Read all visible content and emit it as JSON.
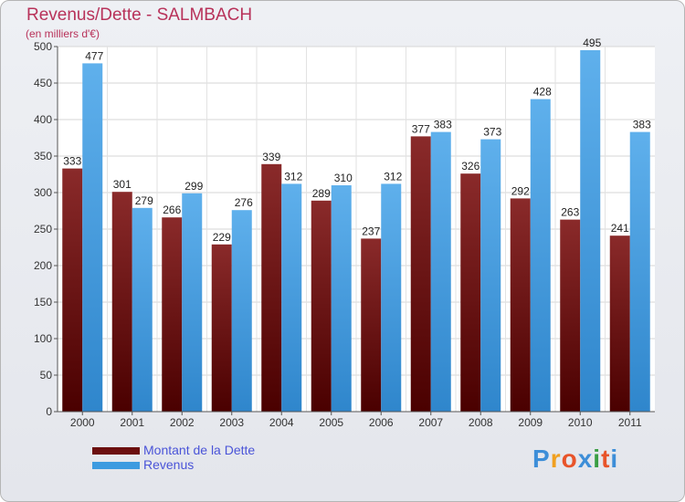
{
  "header": {
    "title": "Revenus/Dette - SALMBACH",
    "subtitle": "(en milliers d'€)"
  },
  "legend": [
    {
      "label": "Montant de la Dette",
      "color": "#6b0f0f"
    },
    {
      "label": "Revenus",
      "color": "#3d9be0"
    }
  ],
  "logo": {
    "letters": [
      "P",
      "r",
      "o",
      "x",
      "i",
      "t",
      "i"
    ],
    "colors": [
      "#3d8ed8",
      "#f0a020",
      "#e8542a",
      "#3d8ed8",
      "#3a9e44",
      "#e8542a",
      "#3d8ed8"
    ]
  },
  "chart_data": {
    "type": "bar",
    "categories": [
      "2000",
      "2001",
      "2002",
      "2003",
      "2004",
      "2005",
      "2006",
      "2007",
      "2008",
      "2009",
      "2010",
      "2011"
    ],
    "series": [
      {
        "name": "Montant de la Dette",
        "values": [
          333,
          301,
          266,
          229,
          339,
          289,
          237,
          377,
          326,
          292,
          263,
          241
        ],
        "color": "#6b0f0f"
      },
      {
        "name": "Revenus",
        "values": [
          477,
          279,
          299,
          276,
          312,
          310,
          312,
          383,
          373,
          428,
          495,
          383
        ],
        "color": "#3d9be0"
      }
    ],
    "ylim": [
      0,
      500
    ],
    "yticks": [
      0,
      50,
      100,
      150,
      200,
      250,
      300,
      350,
      400,
      450,
      500
    ],
    "grid": true
  }
}
